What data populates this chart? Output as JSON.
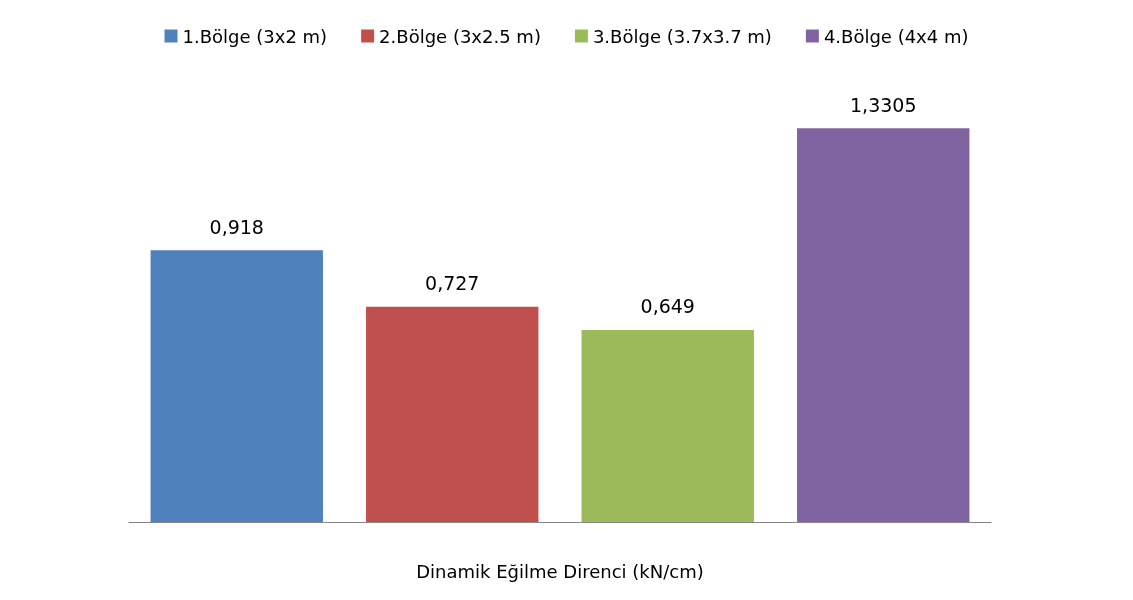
{
  "chart_data": {
    "type": "bar",
    "xlabel": "Dinamik Eğilme Direnci (kN/cm)",
    "categories": [
      null,
      null,
      null,
      null
    ],
    "stacked": true,
    "series": [
      {
        "name": "1.Bölge (3x2 m)",
        "color": "#4f81bd",
        "values": [
          0.918,
          null,
          null,
          null
        ],
        "value_labels": [
          "0,918",
          null,
          null,
          null
        ]
      },
      {
        "name": "2.Bölge (3x2.5 m)",
        "color": "#c0504d",
        "values": [
          null,
          0.727,
          null,
          null
        ],
        "value_labels": [
          null,
          "0,727",
          null,
          null
        ]
      },
      {
        "name": "3.Bölge (3.7x3.7 m)",
        "color": "#9bbb59",
        "values": [
          null,
          null,
          0.649,
          null
        ],
        "value_labels": [
          null,
          null,
          "0,649",
          null
        ]
      },
      {
        "name": "4.Bölge (4x4 m)",
        "color": "#8064a2",
        "values": [
          null,
          null,
          null,
          1.3305
        ],
        "value_labels": [
          null,
          null,
          null,
          "1,3305"
        ]
      }
    ],
    "legend": "top",
    "grid": false
  }
}
